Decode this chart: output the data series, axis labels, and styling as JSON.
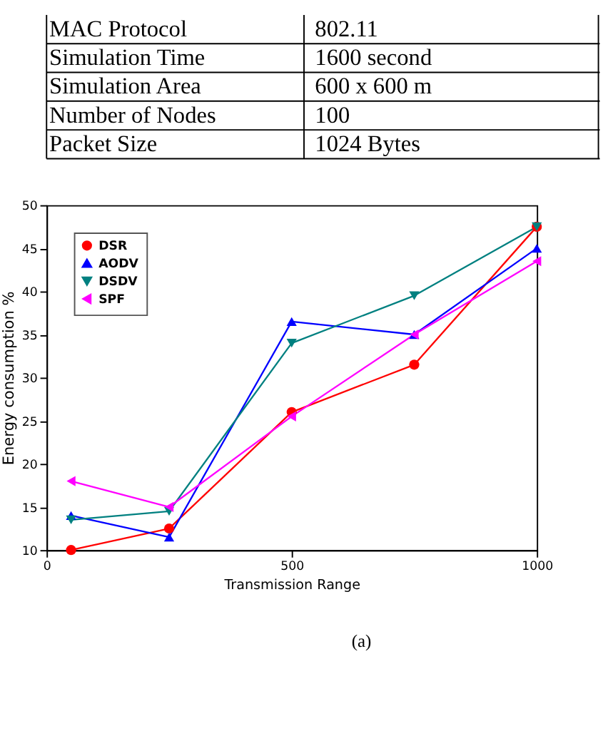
{
  "chart_data": {
    "type": "line",
    "xlabel": "Transmission Range",
    "ylabel": "Energy  consumption %",
    "x": [
      50,
      250,
      500,
      750,
      1000
    ],
    "series": [
      {
        "name": "DSR",
        "color": "#ff0000",
        "marker": "circle",
        "values": [
          10,
          12.5,
          26,
          31.5,
          47.5
        ]
      },
      {
        "name": "AODV",
        "color": "#0000ff",
        "marker": "triangle",
        "values": [
          14,
          11.5,
          36.5,
          35,
          45
        ]
      },
      {
        "name": "DSDV",
        "color": "#008080",
        "marker": "triangle-down",
        "values": [
          13.5,
          14.5,
          34,
          39.5,
          47.5
        ]
      },
      {
        "name": "SPF",
        "color": "#ff00ff",
        "marker": "triangle-left",
        "values": [
          18,
          15,
          25.5,
          35,
          43.5
        ]
      }
    ],
    "xlim": [
      0,
      1000
    ],
    "xticks": [
      0,
      500,
      1000
    ],
    "ylim": [
      10,
      50
    ],
    "yticks": [
      10,
      15,
      20,
      25,
      30,
      35,
      40,
      45,
      50
    ],
    "grid": false,
    "legend": "top left",
    "line_style": "solid",
    "annotations": [
      "MAC Protocol",
      "802.11",
      "Simulation Time",
      "1600 second",
      "Simulation Area",
      "600 x 600 m",
      "Number of Nodes",
      "100",
      "Packet Size",
      "1024 Bytes",
      "(a)"
    ]
  }
}
